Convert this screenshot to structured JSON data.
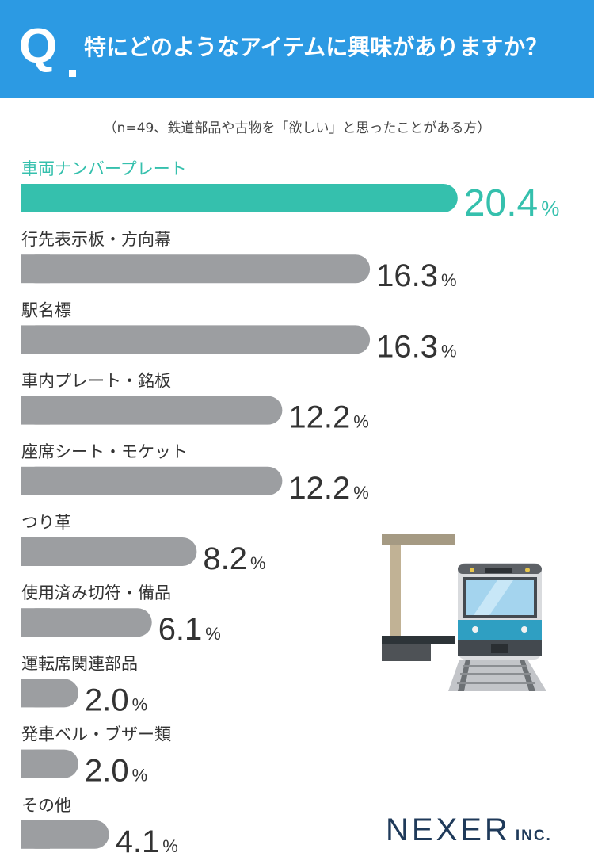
{
  "header": {
    "q_letter": "Q",
    "question": "特にどのようなアイテムに興味がありますか？",
    "color": "#2c9ae3"
  },
  "subtitle": "（n=49、鉄道部品や古物を「欲しい」と思ったことがある方）",
  "chart_data": {
    "type": "bar",
    "orientation": "horizontal",
    "categories": [
      "車両ナンバープレート",
      "行先表示板・方向幕",
      "駅名標",
      "車内プレート・銘板",
      "座席シート・モケット",
      "つり革",
      "使用済み切符・備品",
      "運転席関連部品",
      "発車ベル・ブザー類",
      "その他"
    ],
    "values": [
      20.4,
      16.3,
      16.3,
      12.2,
      12.2,
      8.2,
      6.1,
      2.0,
      2.0,
      4.1
    ],
    "value_labels": [
      "20.4",
      "16.3",
      "16.3",
      "12.2",
      "12.2",
      "8.2",
      "6.1",
      "2.0",
      "2.0",
      "4.1"
    ],
    "unit": "%",
    "highlight_index": 0,
    "colors": {
      "highlight": "#35c0ad",
      "default": "#9c9ea1"
    }
  },
  "illustration": {
    "icon": "train-platform-icon"
  },
  "brand": {
    "name": "NEXER",
    "suffix": "INC."
  }
}
